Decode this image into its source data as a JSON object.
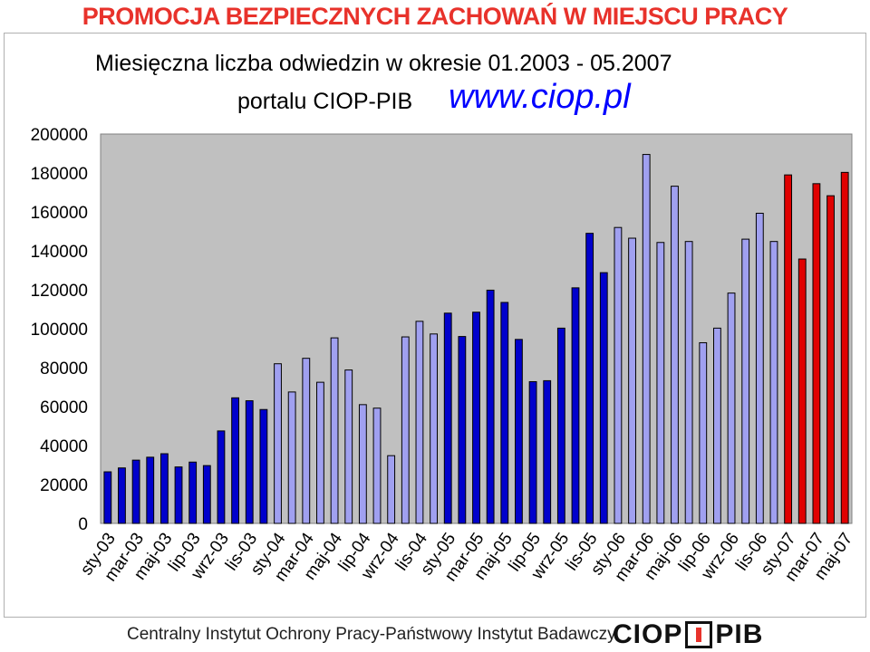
{
  "banner": "PROMOCJA BEZPIECZNYCH ZACHOWAŃ W MIEJSCU PRACY",
  "url_text": "www.ciop.pl",
  "footer": {
    "institute": "Centralny Instytut Ochrony Pracy-Państwowy Instytut Badawczy",
    "logo_left": "CIOP",
    "logo_right": "PIB"
  },
  "chart_data": {
    "type": "bar",
    "title": "Miesięczna liczba odwiedzin w okresie 01.2003  -  05.2007",
    "subtitle": "portalu CIOP-PIB",
    "xlabel": "",
    "ylabel": "",
    "ylim": [
      0,
      200000
    ],
    "yticks": [
      0,
      20000,
      40000,
      60000,
      80000,
      100000,
      120000,
      140000,
      160000,
      180000,
      200000
    ],
    "grid": false,
    "tick_labels": [
      "sty-03",
      "mar-03",
      "maj-03",
      "lip-03",
      "wrz-03",
      "lis-03",
      "sty-04",
      "mar-04",
      "maj-04",
      "lip-04",
      "wrz-04",
      "lis-04",
      "sty-05",
      "mar-05",
      "maj-05",
      "lip-05",
      "wrz-05",
      "lis-05",
      "sty-06",
      "mar-06",
      "maj-06",
      "lip-06",
      "wrz-06",
      "lis-06",
      "sty-07",
      "mar-07",
      "maj-07"
    ],
    "colors": {
      "dark_blue": "#0000cc",
      "light_blue": "#a0a0f0",
      "red": "#e00000",
      "plot_bg": "#c0c0c0"
    },
    "bars": [
      {
        "month": "sty-03",
        "value": 26500,
        "color": "dark_blue"
      },
      {
        "month": "lut-03",
        "value": 28500,
        "color": "dark_blue"
      },
      {
        "month": "mar-03",
        "value": 32500,
        "color": "dark_blue"
      },
      {
        "month": "kwi-03",
        "value": 34000,
        "color": "dark_blue"
      },
      {
        "month": "maj-03",
        "value": 35800,
        "color": "dark_blue"
      },
      {
        "month": "cze-03",
        "value": 29000,
        "color": "dark_blue"
      },
      {
        "month": "lip-03",
        "value": 31500,
        "color": "dark_blue"
      },
      {
        "month": "sie-03",
        "value": 29700,
        "color": "dark_blue"
      },
      {
        "month": "wrz-03",
        "value": 47500,
        "color": "dark_blue"
      },
      {
        "month": "paź-03",
        "value": 64500,
        "color": "dark_blue"
      },
      {
        "month": "lis-03",
        "value": 63000,
        "color": "dark_blue"
      },
      {
        "month": "gru-03",
        "value": 58500,
        "color": "dark_blue"
      },
      {
        "month": "sty-04",
        "value": 82000,
        "color": "light_blue"
      },
      {
        "month": "lut-04",
        "value": 67500,
        "color": "light_blue"
      },
      {
        "month": "mar-04",
        "value": 84800,
        "color": "light_blue"
      },
      {
        "month": "kwi-04",
        "value": 72500,
        "color": "light_blue"
      },
      {
        "month": "maj-04",
        "value": 95300,
        "color": "light_blue"
      },
      {
        "month": "cze-04",
        "value": 78800,
        "color": "light_blue"
      },
      {
        "month": "lip-04",
        "value": 61000,
        "color": "light_blue"
      },
      {
        "month": "sie-04",
        "value": 59200,
        "color": "light_blue"
      },
      {
        "month": "wrz-04",
        "value": 34800,
        "color": "light_blue"
      },
      {
        "month": "paź-04",
        "value": 95800,
        "color": "light_blue"
      },
      {
        "month": "lis-04",
        "value": 103800,
        "color": "light_blue"
      },
      {
        "month": "gru-04",
        "value": 97300,
        "color": "light_blue"
      },
      {
        "month": "sty-05",
        "value": 108000,
        "color": "dark_blue"
      },
      {
        "month": "lut-05",
        "value": 96000,
        "color": "dark_blue"
      },
      {
        "month": "mar-05",
        "value": 108500,
        "color": "dark_blue"
      },
      {
        "month": "kwi-05",
        "value": 119800,
        "color": "dark_blue"
      },
      {
        "month": "maj-05",
        "value": 113500,
        "color": "dark_blue"
      },
      {
        "month": "cze-05",
        "value": 94500,
        "color": "dark_blue"
      },
      {
        "month": "lip-05",
        "value": 72800,
        "color": "dark_blue"
      },
      {
        "month": "sie-05",
        "value": 73300,
        "color": "dark_blue"
      },
      {
        "month": "wrz-05",
        "value": 100300,
        "color": "dark_blue"
      },
      {
        "month": "paź-05",
        "value": 121000,
        "color": "dark_blue"
      },
      {
        "month": "lis-05",
        "value": 149000,
        "color": "dark_blue"
      },
      {
        "month": "gru-05",
        "value": 128800,
        "color": "dark_blue"
      },
      {
        "month": "sty-06",
        "value": 152000,
        "color": "light_blue"
      },
      {
        "month": "lut-06",
        "value": 146500,
        "color": "light_blue"
      },
      {
        "month": "mar-06",
        "value": 189500,
        "color": "light_blue"
      },
      {
        "month": "kwi-06",
        "value": 144300,
        "color": "light_blue"
      },
      {
        "month": "maj-06",
        "value": 173200,
        "color": "light_blue"
      },
      {
        "month": "cze-06",
        "value": 144800,
        "color": "light_blue"
      },
      {
        "month": "lip-06",
        "value": 92800,
        "color": "light_blue"
      },
      {
        "month": "sie-06",
        "value": 100300,
        "color": "light_blue"
      },
      {
        "month": "wrz-06",
        "value": 118300,
        "color": "light_blue"
      },
      {
        "month": "paź-06",
        "value": 146000,
        "color": "light_blue"
      },
      {
        "month": "lis-06",
        "value": 159300,
        "color": "light_blue"
      },
      {
        "month": "gru-06",
        "value": 144800,
        "color": "light_blue"
      },
      {
        "month": "sty-07",
        "value": 179000,
        "color": "red"
      },
      {
        "month": "lut-07",
        "value": 135800,
        "color": "red"
      },
      {
        "month": "mar-07",
        "value": 174500,
        "color": "red"
      },
      {
        "month": "kwi-07",
        "value": 168300,
        "color": "red"
      },
      {
        "month": "maj-07",
        "value": 180300,
        "color": "red"
      }
    ]
  }
}
